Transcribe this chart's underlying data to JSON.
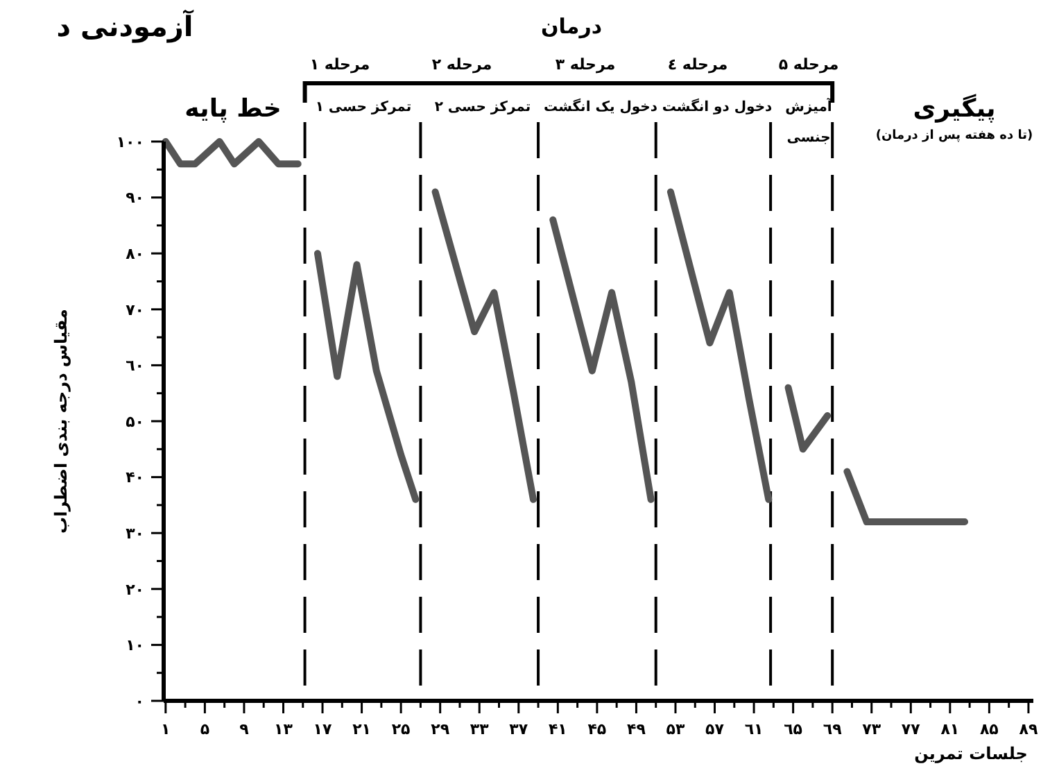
{
  "chart_data": {
    "type": "line",
    "title": "آزمودنی د",
    "xlabel": "جلسات تمرین",
    "ylabel": "مقیاس درجه بندی اضطراب",
    "xlim": [
      0.8,
      89.5
    ],
    "ylim": [
      0,
      100
    ],
    "xticks": [
      {
        "value": 1,
        "label": "۱"
      },
      {
        "value": 3,
        "label": null
      },
      {
        "value": 5,
        "label": "۵"
      },
      {
        "value": 7,
        "label": null
      },
      {
        "value": 9,
        "label": "۹"
      },
      {
        "value": 11,
        "label": null
      },
      {
        "value": 13,
        "label": "۱۳"
      },
      {
        "value": 15,
        "label": null
      },
      {
        "value": 17,
        "label": "۱۷"
      },
      {
        "value": 19,
        "label": null
      },
      {
        "value": 21,
        "label": "۲۱"
      },
      {
        "value": 23,
        "label": null
      },
      {
        "value": 25,
        "label": "۲۵"
      },
      {
        "value": 27,
        "label": null
      },
      {
        "value": 29,
        "label": "۲۹"
      },
      {
        "value": 31,
        "label": null
      },
      {
        "value": 33,
        "label": "۳۳"
      },
      {
        "value": 35,
        "label": null
      },
      {
        "value": 37,
        "label": "۳۷"
      },
      {
        "value": 39,
        "label": null
      },
      {
        "value": 41,
        "label": "۴۱"
      },
      {
        "value": 43,
        "label": null
      },
      {
        "value": 45,
        "label": "۴۵"
      },
      {
        "value": 47,
        "label": null
      },
      {
        "value": 49,
        "label": "۴۹"
      },
      {
        "value": 51,
        "label": null
      },
      {
        "value": 53,
        "label": "۵۳"
      },
      {
        "value": 55,
        "label": null
      },
      {
        "value": 57,
        "label": "۵۷"
      },
      {
        "value": 59,
        "label": null
      },
      {
        "value": 61,
        "label": "٦۱"
      },
      {
        "value": 63,
        "label": null
      },
      {
        "value": 65,
        "label": "٦۵"
      },
      {
        "value": 67,
        "label": null
      },
      {
        "value": 69,
        "label": "٦۹"
      },
      {
        "value": 71,
        "label": null
      },
      {
        "value": 73,
        "label": "۷۳"
      },
      {
        "value": 75,
        "label": null
      },
      {
        "value": 77,
        "label": "۷۷"
      },
      {
        "value": 79,
        "label": null
      },
      {
        "value": 81,
        "label": "۸۱"
      },
      {
        "value": 83,
        "label": null
      },
      {
        "value": 85,
        "label": "۸۵"
      },
      {
        "value": 87,
        "label": null
      },
      {
        "value": 89,
        "label": "۸۹"
      }
    ],
    "yticks": [
      {
        "value": 0,
        "label": "۰"
      },
      {
        "value": 5,
        "label": null
      },
      {
        "value": 10,
        "label": "۱۰"
      },
      {
        "value": 15,
        "label": null
      },
      {
        "value": 20,
        "label": "۲۰"
      },
      {
        "value": 25,
        "label": null
      },
      {
        "value": 30,
        "label": "۳۰"
      },
      {
        "value": 35,
        "label": null
      },
      {
        "value": 40,
        "label": "۴۰"
      },
      {
        "value": 45,
        "label": null
      },
      {
        "value": 50,
        "label": "۵۰"
      },
      {
        "value": 55,
        "label": null
      },
      {
        "value": 60,
        "label": "٦۰"
      },
      {
        "value": 65,
        "label": null
      },
      {
        "value": 70,
        "label": "۷۰"
      },
      {
        "value": 75,
        "label": null
      },
      {
        "value": 80,
        "label": "۸۰"
      },
      {
        "value": 85,
        "label": null
      },
      {
        "value": 90,
        "label": "۹۰"
      },
      {
        "value": 95,
        "label": null
      },
      {
        "value": 100,
        "label": "۱۰۰"
      }
    ],
    "series": [
      {
        "color": "#555555",
        "x": [
          1,
          2.5,
          4,
          6.5,
          8,
          10.5,
          12.5,
          14.5
        ],
        "values": [
          100,
          96,
          96,
          100,
          96,
          100,
          96,
          96
        ]
      },
      {
        "color": "#555555",
        "x": [
          16.5,
          18.5,
          20.5,
          22.5,
          25,
          26.5
        ],
        "values": [
          80,
          58,
          78,
          59,
          44,
          36
        ]
      },
      {
        "color": "#555555",
        "x": [
          28.5,
          32.5,
          34.5,
          36.5,
          38.5
        ],
        "values": [
          91,
          66,
          73,
          55,
          36
        ]
      },
      {
        "color": "#555555",
        "x": [
          40.5,
          44.5,
          46.5,
          48.5,
          50.5
        ],
        "values": [
          86,
          59,
          73,
          57,
          36
        ]
      },
      {
        "color": "#555555",
        "x": [
          52.5,
          56.5,
          58.5,
          60.5,
          62.5
        ],
        "values": [
          91,
          64,
          73,
          54,
          36
        ]
      },
      {
        "color": "#555555",
        "x": [
          64.5,
          66,
          68.5
        ],
        "values": [
          56,
          45,
          51
        ]
      },
      {
        "color": "#555555",
        "x": [
          70.5,
          72.5,
          74.5,
          76.5,
          78.5,
          80.5,
          82.5
        ],
        "values": [
          41,
          32,
          32,
          32,
          32,
          32,
          32
        ]
      }
    ],
    "ref_lines": [
      {
        "axis": "x",
        "value": 15.2,
        "line_style": "dashed"
      },
      {
        "axis": "x",
        "value": 27,
        "line_style": "dashed"
      },
      {
        "axis": "x",
        "value": 39,
        "line_style": "dashed"
      },
      {
        "axis": "x",
        "value": 51,
        "line_style": "dashed"
      },
      {
        "axis": "x",
        "value": 62.7,
        "line_style": "dashed"
      },
      {
        "axis": "x",
        "value": 69,
        "line_style": "dashed"
      }
    ],
    "annotations": [
      "درمان",
      "مرحله ۱",
      "مرحله ۲",
      "مرحله ۳",
      "مرحله ٤",
      "مرحله ۵",
      "تمرکز حسی ۱",
      "تمرکز حسی ۲",
      "دخول یک انگشت",
      "دخول دو انگشت",
      "آمیزش جنسی",
      "خط پایه",
      "پیگیری",
      "(تا ده هفته پس از درمان)"
    ]
  }
}
